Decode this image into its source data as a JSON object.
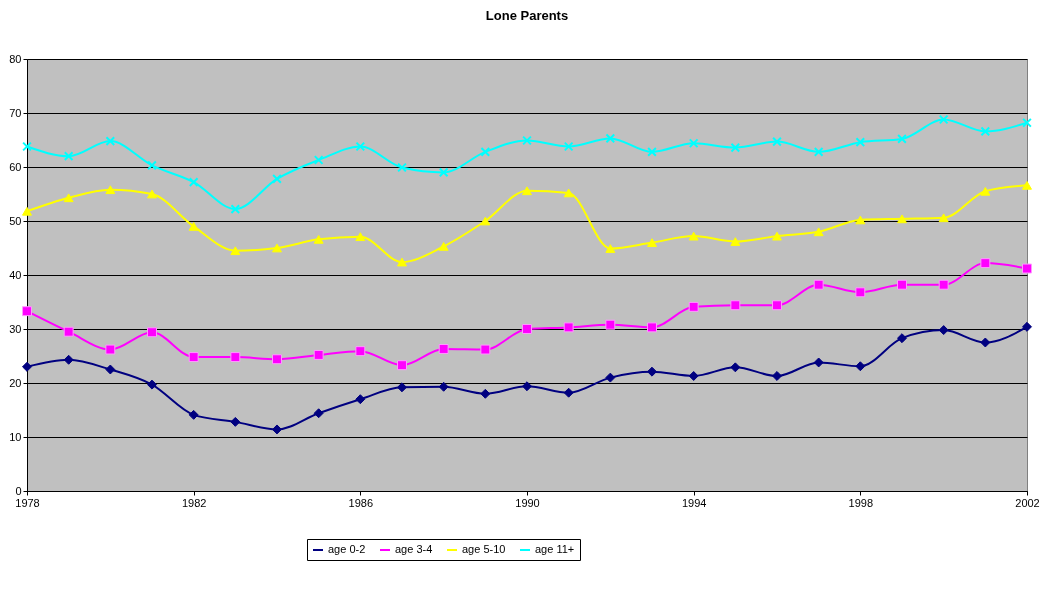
{
  "chart_data": {
    "type": "line",
    "title": "Lone Parents",
    "x": [
      1978,
      1979,
      1980,
      1981,
      1982,
      1983,
      1984,
      1985,
      1986,
      1987,
      1988,
      1989,
      1990,
      1991,
      1992,
      1993,
      1994,
      1995,
      1996,
      1997,
      1998,
      1999,
      2000,
      2001,
      2002
    ],
    "xlim": [
      1978,
      2002
    ],
    "xticks": [
      1978,
      1982,
      1986,
      1990,
      1994,
      1998,
      2002
    ],
    "ylim": [
      0,
      80
    ],
    "yticks": [
      0,
      10,
      20,
      30,
      40,
      50,
      60,
      70,
      80
    ],
    "grid": "y",
    "legend": "bottom",
    "line_style": "solid",
    "series": [
      {
        "name": "age 0-2",
        "color": "#000080",
        "marker": "diamond",
        "values": [
          23,
          24.3,
          22.5,
          19.7,
          14.1,
          12.8,
          11.4,
          14.4,
          17,
          19.2,
          19.3,
          18,
          19.4,
          18.2,
          21,
          22.1,
          21.3,
          22.9,
          21.3,
          23.8,
          23.1,
          28.3,
          29.8,
          27.5,
          30.4
        ]
      },
      {
        "name": "age 3-4",
        "color": "#ff00ff",
        "marker": "square",
        "values": [
          33.3,
          29.5,
          26.2,
          29.4,
          24.8,
          24.8,
          24.4,
          25.2,
          25.9,
          23.3,
          26.3,
          26.2,
          30,
          30.3,
          30.8,
          30.3,
          34.1,
          34.4,
          34.4,
          38.2,
          36.8,
          38.2,
          38.2,
          42.2,
          41.2
        ]
      },
      {
        "name": "age 5-10",
        "color": "#ffff00",
        "marker": "triangle",
        "values": [
          51.8,
          54.3,
          55.8,
          55,
          49,
          44.5,
          45,
          46.6,
          47.1,
          42.4,
          45.3,
          50,
          55.6,
          55.2,
          44.9,
          46,
          47.2,
          46.2,
          47.2,
          48,
          50.2,
          50.4,
          50.6,
          55.5,
          56.6
        ]
      },
      {
        "name": "age 11+",
        "color": "#00ffff",
        "marker": "cross",
        "values": [
          63.8,
          62,
          64.8,
          60.3,
          57.2,
          52.2,
          57.8,
          61.3,
          63.8,
          59.9,
          59,
          62.8,
          64.9,
          63.8,
          65.3,
          62.8,
          64.4,
          63.6,
          64.7,
          62.8,
          64.6,
          65.2,
          68.8,
          66.6,
          68.2
        ]
      }
    ]
  }
}
